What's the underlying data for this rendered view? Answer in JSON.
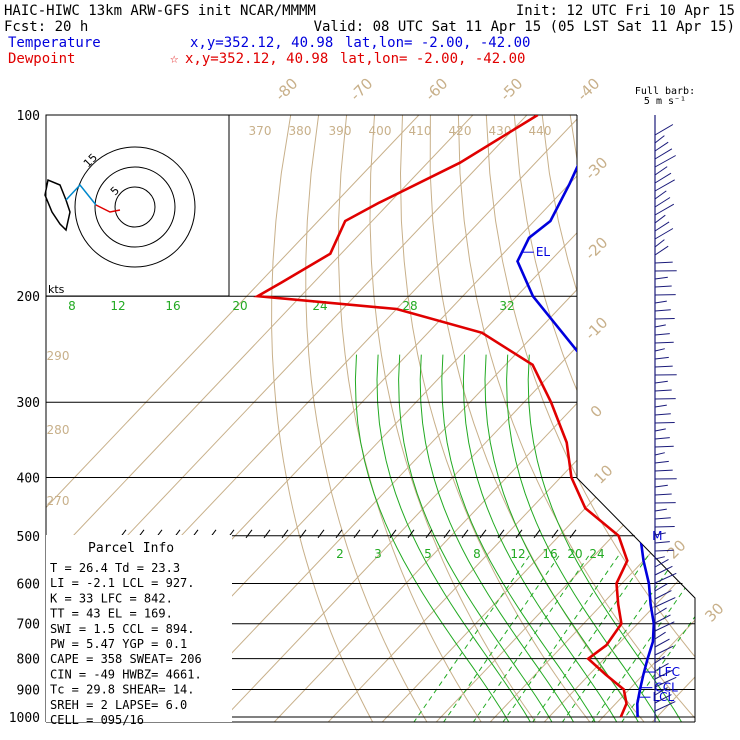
{
  "header": {
    "line1_left": "HAIC-HIWC 13km ARW-GFS init   NCAR/MMMM",
    "line1_right": "Init: 12 UTC Fri 10 Apr 15",
    "line2_left": "Fcst:   20 h",
    "line2_right": "Valid: 08 UTC Sat 11 Apr 15 (05 LST Sat 11 Apr 15)",
    "temp_label": "Temperature",
    "temp_loc": "x,y=352.12, 40.98",
    "temp_latlon": "lat,lon= -2.00, -42.00",
    "dew_label": "Dewpoint",
    "dew_star": "☆",
    "dew_loc": "x,y=352.12, 40.98",
    "dew_latlon": "lat,lon= -2.00, -42.00",
    "barb_label_1": "Full barb:",
    "barb_label_2": "5 m s⁻¹"
  },
  "colors": {
    "temperature": "#0000dd",
    "dewpoint": "#e00000",
    "isotherm": "#c8b08a",
    "adiabat": "#c8b08a",
    "mixing": "#22aa22",
    "title_blue": "#0000dd",
    "title_red": "#e00000",
    "barb": "#1a1a7a"
  },
  "chart_data": {
    "type": "line",
    "title": "HAIC-HIWC 13km ARW-GFS init   NCAR/MMMM",
    "pressure_levels": [
      "100",
      "200",
      "300",
      "400",
      "500",
      "600",
      "700",
      "800",
      "900",
      "1000"
    ],
    "pressure_values": [
      100,
      200,
      300,
      400,
      500,
      600,
      700,
      800,
      900,
      1000
    ],
    "plim": [
      100,
      1025
    ],
    "isotherm_labels": [
      "-80",
      "-70",
      "-60",
      "-50",
      "-40",
      "-30",
      "-20",
      "-10",
      "0",
      "10",
      "20",
      "30",
      "40"
    ],
    "theta_labels": [
      "370",
      "380",
      "390",
      "400",
      "410",
      "420",
      "430",
      "440"
    ],
    "theta_side_labels": [
      "290",
      "280",
      "270"
    ],
    "mixing_labels_upper": [
      "8",
      "12",
      "16",
      "20",
      "24",
      "28",
      "32"
    ],
    "mixing_labels_lower": [
      "2",
      "3",
      "5",
      "8",
      "12",
      "16",
      "20",
      "24"
    ],
    "series": [
      {
        "name": "Temperature",
        "points": [
          [
            100,
            -86
          ],
          [
            110,
            -84
          ],
          [
            130,
            -80
          ],
          [
            150,
            -77
          ],
          [
            160,
            -78
          ],
          [
            175,
            -76
          ],
          [
            200,
            -67
          ],
          [
            250,
            -48
          ],
          [
            300,
            -34
          ],
          [
            350,
            -23
          ],
          [
            400,
            -14
          ],
          [
            450,
            -8
          ],
          [
            500,
            -5
          ],
          [
            550,
            0
          ],
          [
            600,
            5
          ],
          [
            650,
            9
          ],
          [
            700,
            13
          ],
          [
            750,
            16
          ],
          [
            800,
            18
          ],
          [
            850,
            20
          ],
          [
            900,
            22
          ],
          [
            950,
            24
          ],
          [
            1000,
            26.4
          ]
        ]
      },
      {
        "name": "Dewpoint",
        "points": [
          [
            100,
            -98
          ],
          [
            120,
            -104
          ],
          [
            140,
            -112
          ],
          [
            150,
            -115
          ],
          [
            170,
            -112
          ],
          [
            190,
            -116
          ],
          [
            200,
            -118
          ],
          [
            210,
            -90
          ],
          [
            230,
            -70
          ],
          [
            260,
            -55
          ],
          [
            300,
            -45
          ],
          [
            350,
            -35
          ],
          [
            400,
            -28
          ],
          [
            450,
            -20
          ],
          [
            500,
            -9
          ],
          [
            550,
            -3
          ],
          [
            600,
            -1
          ],
          [
            650,
            3
          ],
          [
            700,
            7
          ],
          [
            760,
            8
          ],
          [
            800,
            7
          ],
          [
            850,
            13
          ],
          [
            900,
            19
          ],
          [
            950,
            22
          ],
          [
            1000,
            23.3
          ]
        ]
      }
    ],
    "annotations": [
      {
        "label": "EL",
        "p": 169
      },
      {
        "label": "LFC",
        "p": 842
      },
      {
        "label": "CCL",
        "p": 894
      },
      {
        "label": "LCL",
        "p": 927
      },
      {
        "label": "M",
        "p": 500
      }
    ],
    "hodograph": {
      "units": "kts",
      "ring_labels": [
        "5",
        "15"
      ]
    },
    "parcel_info": {
      "title": "Parcel Info",
      "rows": [
        "T  =    26.4  Td =  23.3",
        "LI =    -2.1  LCL =  927.",
        "K  =      33  LFC =  842.",
        "TT =      43  EL  =  169.",
        "SWI =    1.5  CCL =  894.",
        "PW =    5.47  YGP =   0.1",
        "CAPE =   358  SWEAT=  206",
        "CIN =    -49  HWBZ= 4661.",
        "Tc =    29.8  SHEAR=  14.",
        "SREH =     2  LAPSE=  6.0",
        "CELL = 095/16"
      ]
    }
  }
}
